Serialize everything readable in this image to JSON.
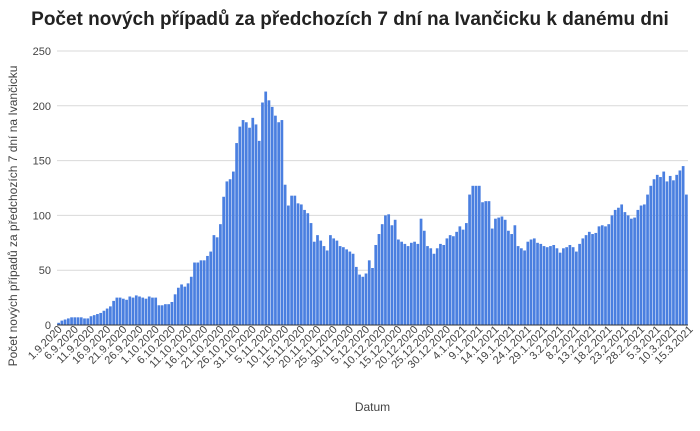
{
  "chart_data": {
    "type": "bar",
    "title": "Počet nových případů za předchozích 7 dní na Ivančicku k danému dni",
    "xlabel": "Datum",
    "ylabel": "Počet nových případů za předchozích 7 dní na Ivančicku",
    "ylim": [
      0,
      250
    ],
    "yticks": [
      0,
      50,
      100,
      150,
      200,
      250
    ],
    "grid": true,
    "legend": "none",
    "bar_color": "#4a7fe0",
    "x_start": "1.9.2020",
    "x_end": "19.3.2021",
    "xticks": [
      "1.9.2020",
      "6.9.2020",
      "11.9.2020",
      "16.9.2020",
      "21.9.2020",
      "26.9.2020",
      "1.10.2020",
      "6.10.2020",
      "11.10.2020",
      "16.10.2020",
      "21.10.2020",
      "26.10.2020",
      "31.10.2020",
      "5.11.2020",
      "10.11.2020",
      "15.11.2020",
      "20.11.2020",
      "25.11.2020",
      "30.11.2020",
      "5.12.2020",
      "10.12.2020",
      "15.12.2020",
      "20.12.2020",
      "25.12.2020",
      "30.12.2020",
      "4.1.2021",
      "9.1.2021",
      "14.1.2021",
      "19.1.2021",
      "24.1.2021",
      "29.1.2021",
      "3.2.2021",
      "8.2.2021",
      "13.2.2021",
      "18.2.2021",
      "23.2.2021",
      "28.2.2021",
      "5.3.2021",
      "10.3.2021",
      "15.3.2021"
    ],
    "values": [
      2,
      4,
      5,
      6,
      7,
      7,
      7,
      7,
      6,
      6,
      8,
      9,
      10,
      11,
      13,
      15,
      17,
      22,
      25,
      25,
      24,
      23,
      26,
      25,
      27,
      26,
      25,
      24,
      26,
      25,
      25,
      18,
      18,
      19,
      19,
      21,
      28,
      34,
      37,
      35,
      38,
      44,
      57,
      57,
      59,
      59,
      63,
      67,
      82,
      80,
      92,
      117,
      131,
      133,
      140,
      166,
      181,
      187,
      185,
      180,
      189,
      183,
      168,
      203,
      213,
      205,
      199,
      191,
      185,
      187,
      128,
      109,
      118,
      118,
      111,
      110,
      105,
      102,
      93,
      76,
      82,
      77,
      72,
      68,
      82,
      79,
      77,
      72,
      71,
      69,
      67,
      65,
      53,
      46,
      44,
      47,
      59,
      52,
      73,
      83,
      92,
      100,
      101,
      91,
      96,
      78,
      76,
      74,
      72,
      75,
      76,
      74,
      97,
      86,
      72,
      70,
      65,
      70,
      74,
      73,
      79,
      82,
      81,
      85,
      90,
      87,
      93,
      119,
      127,
      127,
      127,
      112,
      113,
      113,
      88,
      97,
      98,
      99,
      96,
      86,
      83,
      91,
      72,
      70,
      68,
      76,
      78,
      79,
      75,
      74,
      72,
      71,
      72,
      73,
      70,
      66,
      70,
      71,
      73,
      71,
      67,
      74,
      79,
      82,
      85,
      83,
      84,
      90,
      91,
      90,
      92,
      100,
      105,
      107,
      110,
      103,
      100,
      97,
      98,
      105,
      109,
      110,
      119,
      127,
      133,
      137,
      135,
      140,
      131,
      136,
      132,
      137,
      141,
      145,
      119
    ]
  }
}
